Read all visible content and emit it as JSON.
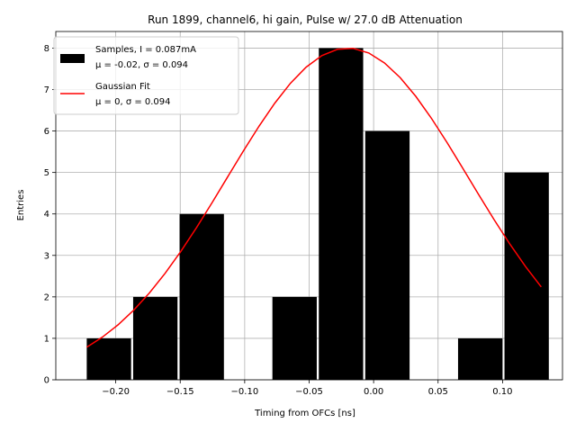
{
  "chart_data": {
    "type": "bar",
    "title": "Run 1899, channel6, hi gain, Pulse w/ 27.0 dB Attenuation",
    "xlabel": "Timing from OFCs [ns]",
    "ylabel": "Entries",
    "xlim": [
      -0.2465,
      0.1465
    ],
    "ylim": [
      0,
      8.4
    ],
    "xticks": [
      -0.2,
      -0.15,
      -0.1,
      -0.05,
      0.0,
      0.05,
      0.1
    ],
    "xtick_labels": [
      "−0.20",
      "−0.15",
      "−0.10",
      "−0.05",
      "0.00",
      "0.05",
      "0.10"
    ],
    "yticks": [
      0,
      1,
      2,
      3,
      4,
      5,
      6,
      7,
      8
    ],
    "ytick_labels": [
      "0",
      "1",
      "2",
      "3",
      "4",
      "5",
      "6",
      "7",
      "8"
    ],
    "grid": true,
    "legend_position": "top-left",
    "histogram": {
      "name": "Samples, I = 0.087mA",
      "stats": "μ = -0.02, σ = 0.094",
      "color": "#000000",
      "bin_edges": [
        -0.2225,
        -0.1865,
        -0.1505,
        -0.1145,
        -0.0785,
        -0.0425,
        -0.0065,
        0.0295,
        0.0655,
        0.1015,
        0.1375
      ],
      "bar_width": 0.0344,
      "values": [
        1,
        2,
        4,
        0,
        2,
        8,
        6,
        0,
        1,
        5
      ]
    },
    "fit": {
      "name": "Gaussian Fit",
      "stats": "μ = 0, σ = 0.094",
      "color": "#ff0000",
      "mu": -0.02,
      "sigma": 0.094,
      "amplitude": 8.0,
      "x_range": [
        -0.2225,
        0.13
      ],
      "n_points": 30
    }
  }
}
